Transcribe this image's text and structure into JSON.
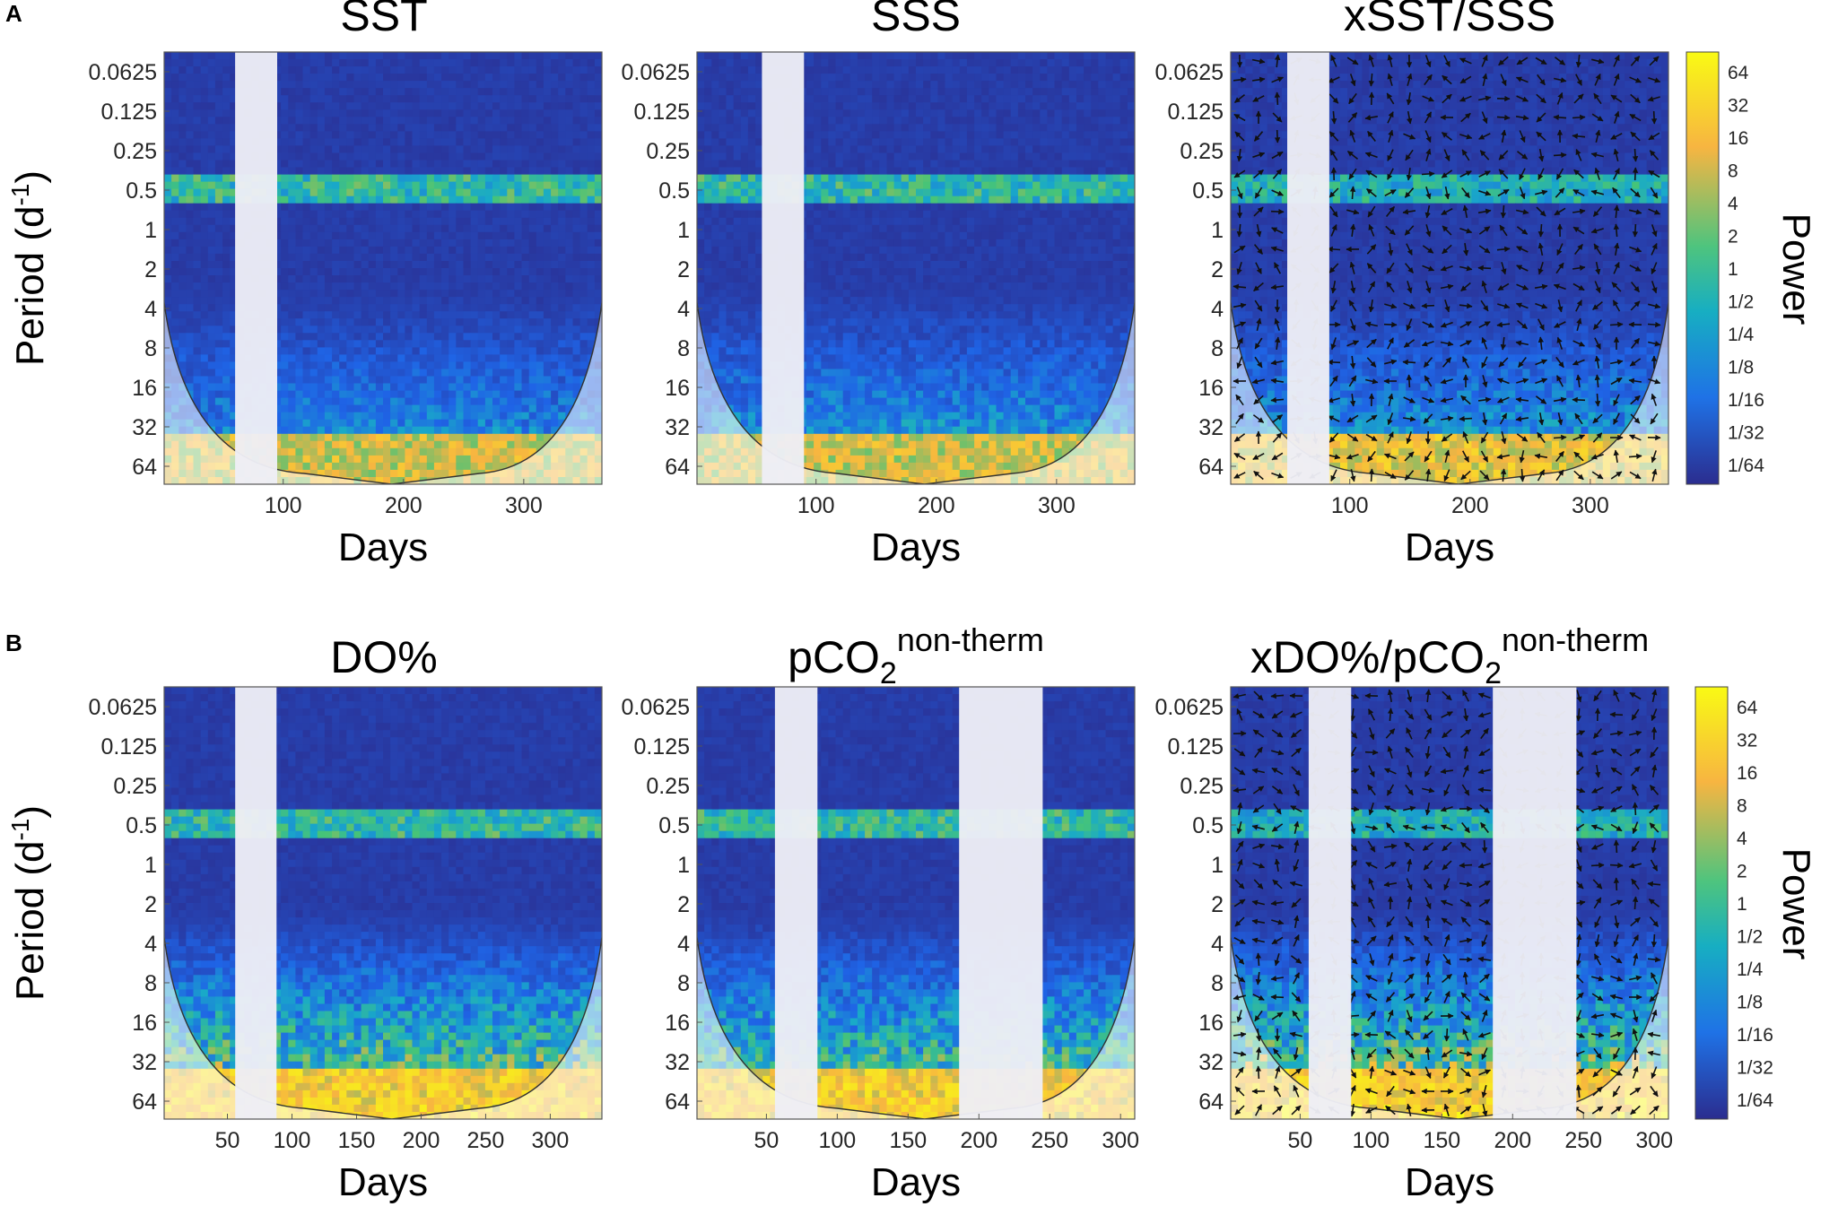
{
  "panel_labels": [
    "A",
    "B"
  ],
  "chart_data": [
    {
      "type": "heatmap",
      "row": "A",
      "title": "SST",
      "xlabel": "Days",
      "ylabel": "Period",
      "ylabel_unit_base": "(d",
      "ylabel_unit_sup": "-1",
      "ylabel_unit_close": ")",
      "x_range": [
        1,
        365
      ],
      "x_ticks": [
        100,
        200,
        300
      ],
      "y_ticks": [
        "0.0625",
        "0.125",
        "0.25",
        "0.5",
        "1",
        "2",
        "4",
        "8",
        "16",
        "32",
        "64"
      ],
      "gaps": [
        [
          60,
          95
        ]
      ],
      "arrows": false,
      "band_strength": 0.55,
      "low_strength": 0.5,
      "floor_strength": 0.85
    },
    {
      "type": "heatmap",
      "row": "A",
      "title": "SSS",
      "xlabel": "Days",
      "x_range": [
        1,
        365
      ],
      "x_ticks": [
        100,
        200,
        300
      ],
      "y_ticks": [
        "0.0625",
        "0.125",
        "0.25",
        "0.5",
        "1",
        "2",
        "4",
        "8",
        "16",
        "32",
        "64"
      ],
      "gaps": [
        [
          55,
          90
        ]
      ],
      "arrows": false,
      "band_strength": 0.55,
      "low_strength": 0.55,
      "floor_strength": 0.85
    },
    {
      "type": "heatmap",
      "row": "A",
      "title": "xSST/SSS",
      "xlabel": "Days",
      "x_range": [
        1,
        365
      ],
      "x_ticks": [
        100,
        200,
        300
      ],
      "y_ticks": [
        "0.0625",
        "0.125",
        "0.25",
        "0.5",
        "1",
        "2",
        "4",
        "8",
        "16",
        "32",
        "64"
      ],
      "gaps": [
        [
          48,
          83
        ]
      ],
      "arrows": true,
      "band_strength": 0.5,
      "low_strength": 0.55,
      "floor_strength": 0.9
    },
    {
      "type": "heatmap",
      "row": "B",
      "title": "DO%",
      "xlabel": "Days",
      "ylabel": "Period",
      "ylabel_unit_base": "(d",
      "ylabel_unit_sup": "-1",
      "ylabel_unit_close": ")",
      "x_range": [
        1,
        340
      ],
      "x_ticks": [
        50,
        100,
        150,
        200,
        250,
        300
      ],
      "y_ticks": [
        "0.0625",
        "0.125",
        "0.25",
        "0.5",
        "1",
        "2",
        "4",
        "8",
        "16",
        "32",
        "64"
      ],
      "gaps": [
        [
          56,
          88
        ]
      ],
      "arrows": false,
      "band_strength": 0.55,
      "low_strength": 0.85,
      "floor_strength": 0.95
    },
    {
      "type": "heatmap",
      "row": "B",
      "title_main": "pCO",
      "title_sub": "2",
      "title_sup": "non-therm",
      "xlabel": "Days",
      "x_range": [
        1,
        310
      ],
      "x_ticks": [
        50,
        100,
        150,
        200,
        250,
        300
      ],
      "y_ticks": [
        "0.0625",
        "0.125",
        "0.25",
        "0.5",
        "1",
        "2",
        "4",
        "8",
        "16",
        "32",
        "64"
      ],
      "gaps": [
        [
          56,
          86
        ],
        [
          186,
          245
        ]
      ],
      "arrows": false,
      "band_strength": 0.55,
      "low_strength": 0.8,
      "floor_strength": 0.95
    },
    {
      "type": "heatmap",
      "row": "B",
      "title_main": "xDO%/pCO",
      "title_sub": "2",
      "title_sup": "non-therm",
      "xlabel": "Days",
      "x_range": [
        1,
        310
      ],
      "x_ticks": [
        50,
        100,
        150,
        200,
        250,
        300
      ],
      "y_ticks": [
        "0.0625",
        "0.125",
        "0.25",
        "0.5",
        "1",
        "2",
        "4",
        "8",
        "16",
        "32",
        "64"
      ],
      "gaps": [
        [
          56,
          86
        ],
        [
          186,
          245
        ]
      ],
      "arrows": true,
      "band_strength": 0.5,
      "low_strength": 0.9,
      "floor_strength": 0.95
    }
  ],
  "colorbar": {
    "label": "Power",
    "ticks": [
      "64",
      "32",
      "16",
      "8",
      "4",
      "2",
      "1",
      "1/2",
      "1/4",
      "1/8",
      "1/16",
      "1/32",
      "1/64"
    ]
  },
  "colors": {
    "low": "#2b2d8f",
    "mid": "#21b3a4",
    "high": "#f7e72a",
    "gap": "#eeeef6",
    "border": "#555555"
  }
}
